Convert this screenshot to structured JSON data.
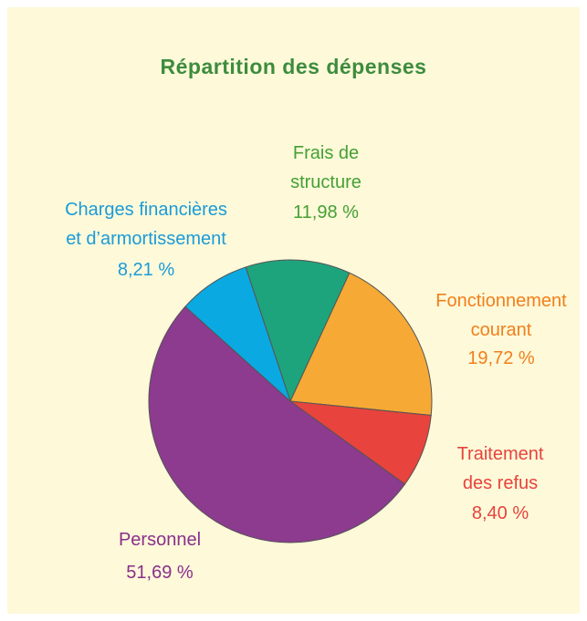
{
  "chart_data": {
    "type": "pie",
    "title": "Répartition des dépenses",
    "categories": [
      "Frais de structure",
      "Fonctionnement courant",
      "Traitement des refus",
      "Personnel",
      "Charges financières et d’armortissement"
    ],
    "values": [
      11.98,
      19.72,
      8.4,
      51.69,
      8.21
    ],
    "value_labels": [
      "11,98 %",
      "19,72 %",
      "8,40 %",
      "51,69 %",
      "8,21 %"
    ],
    "colors": [
      "#1ea47c",
      "#f6a935",
      "#e8433d",
      "#8c3b8e",
      "#0aa9e2"
    ],
    "label_colors": [
      "#45a034",
      "#f27f1b",
      "#e8433d",
      "#8a2f8c",
      "#1b9bd8"
    ]
  }
}
